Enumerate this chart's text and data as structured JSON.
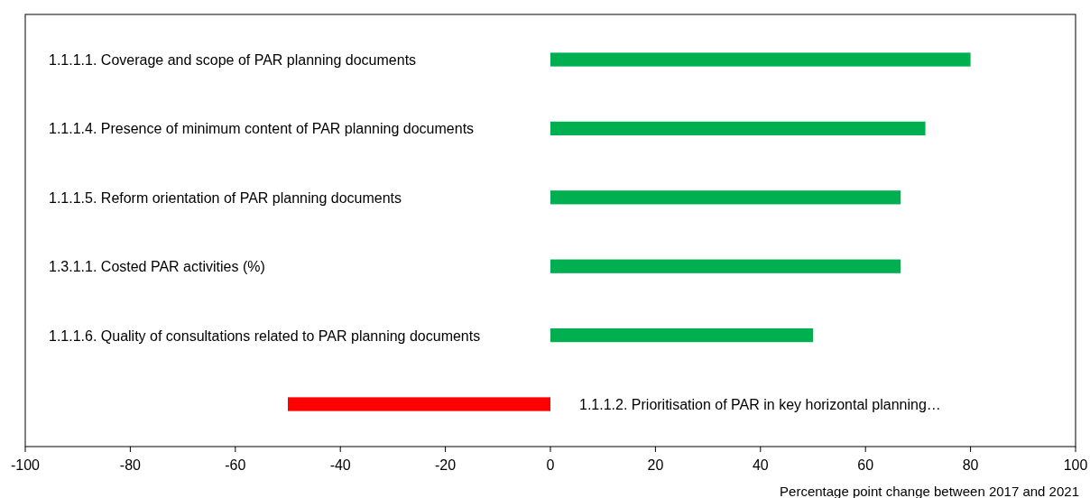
{
  "chart_data": {
    "type": "bar",
    "orientation": "horizontal",
    "xlabel": "Percentage point change between 2017 and 2021",
    "categories": [
      "1.1.1.1. Coverage and scope of PAR planning documents",
      "1.1.1.4. Presence of minimum content of PAR planning documents",
      "1.1.1.5. Reform orientation of PAR planning documents",
      "1.3.1.1. Costed PAR activities (%)",
      "1.1.1.6. Quality of consultations related to PAR planning documents",
      "1.1.1.2. Prioritisation of PAR in key horizontal planning…"
    ],
    "values": [
      80,
      71.4,
      66.7,
      66.7,
      50,
      -50
    ],
    "colors": [
      "#00b050",
      "#00b050",
      "#00b050",
      "#00b050",
      "#00b050",
      "#ff0000"
    ],
    "xlim": [
      -100,
      100
    ],
    "xticks": [
      -100,
      -80,
      -60,
      -40,
      -20,
      0,
      20,
      40,
      60,
      80,
      100
    ],
    "grid": false
  }
}
